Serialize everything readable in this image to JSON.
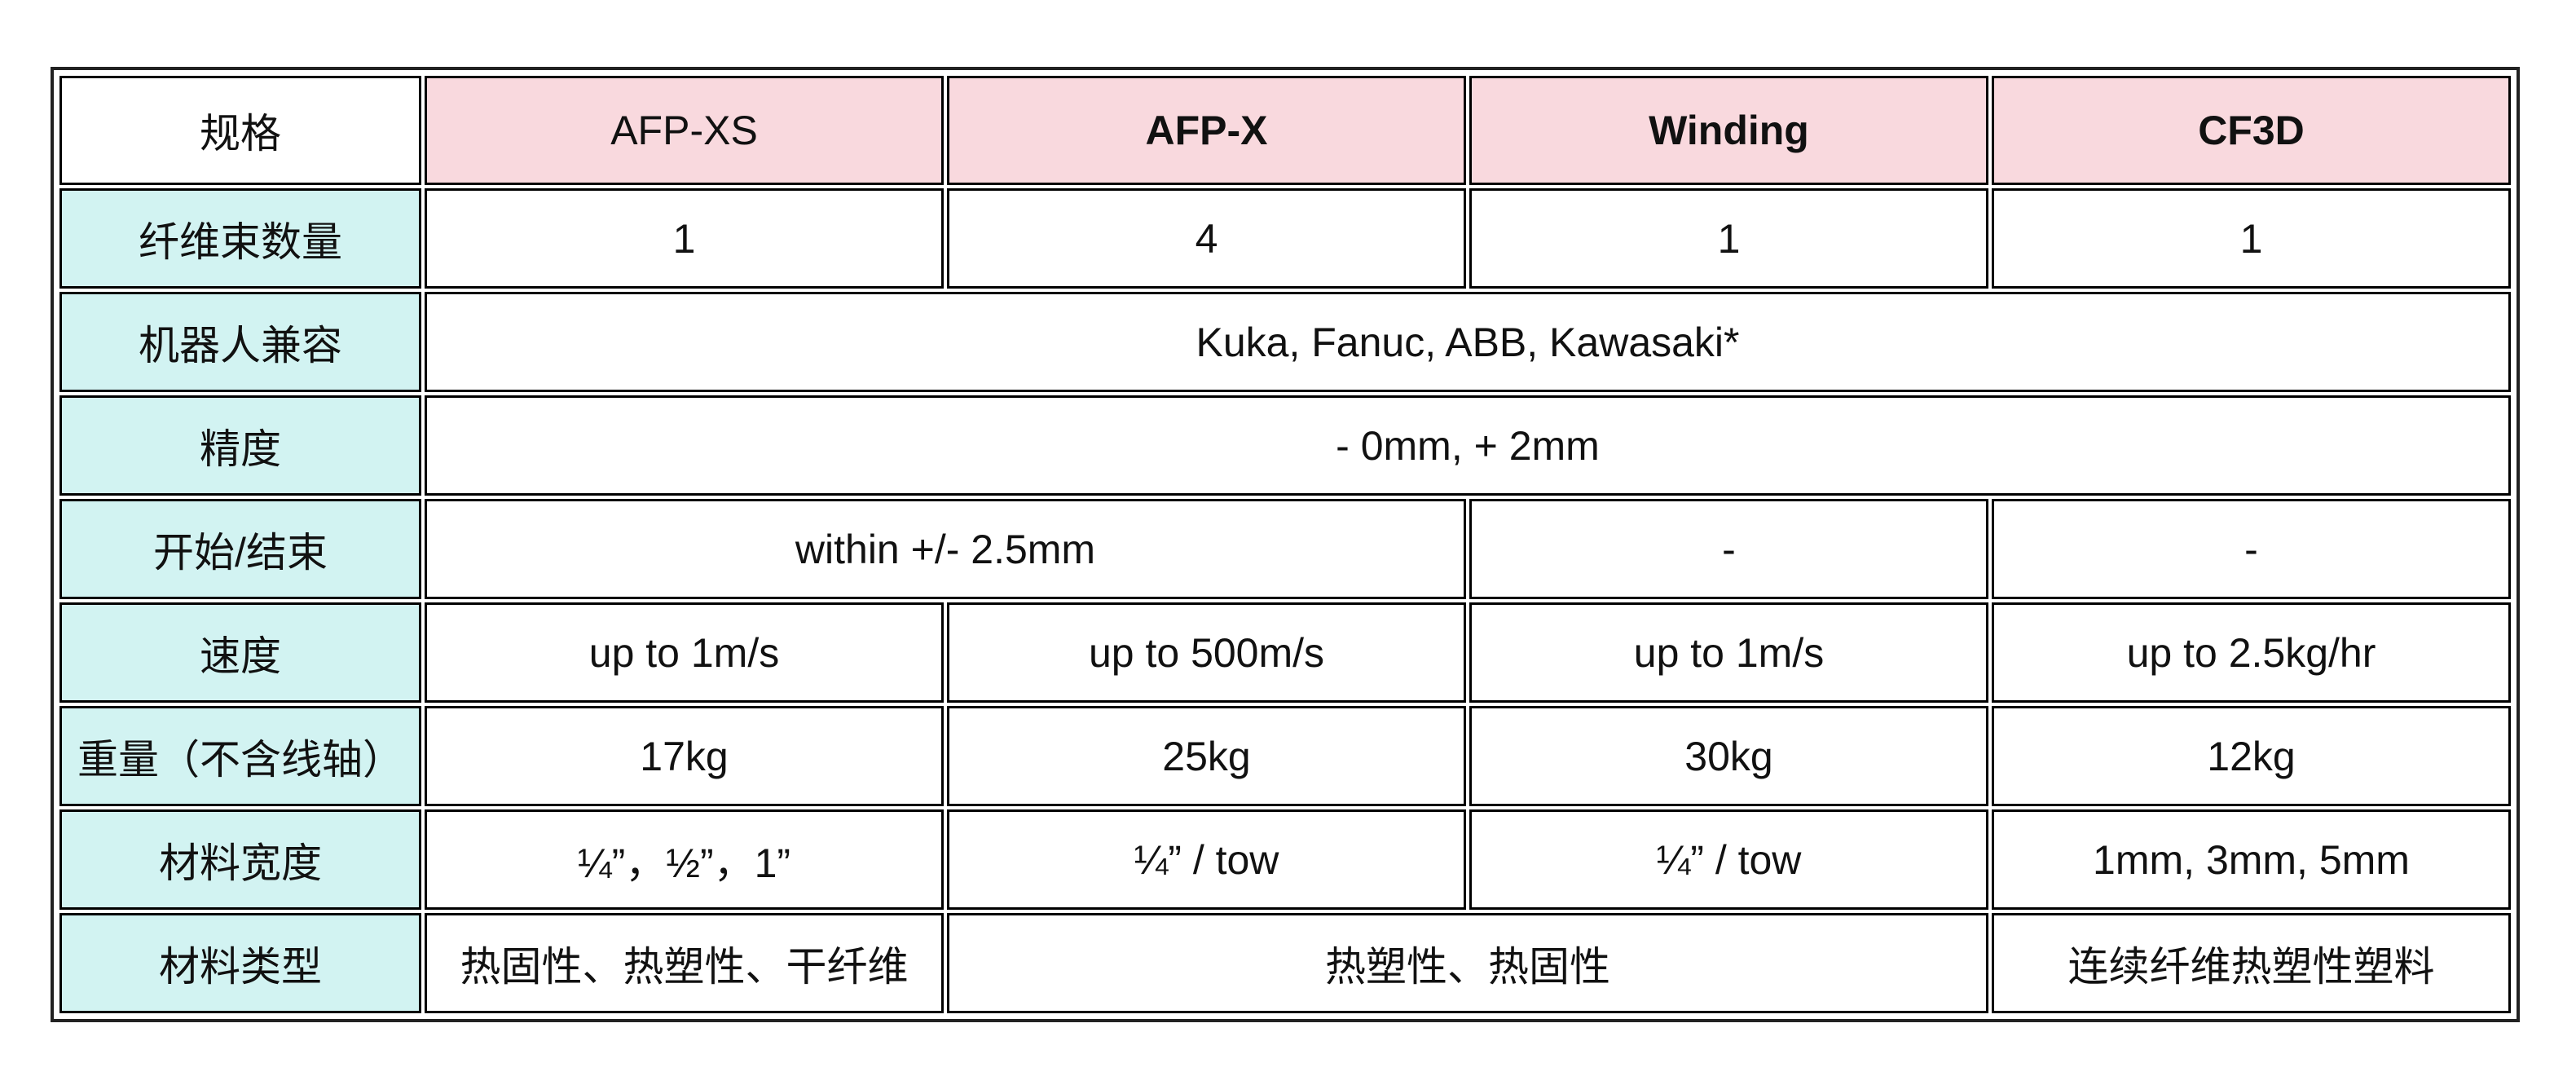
{
  "colors": {
    "header_bg": "#f9d9de",
    "label_bg": "#d2f3f2",
    "border": "#000000"
  },
  "table": {
    "corner": "规格",
    "columns": [
      "AFP-XS",
      "AFP-X",
      "Winding",
      "CF3D"
    ],
    "rows": [
      {
        "label": "纤维束数量",
        "cells": [
          "1",
          "4",
          "1",
          "1"
        ]
      },
      {
        "label": "机器人兼容",
        "cells": [
          "Kuka, Fanuc, ABB, Kawasaki*"
        ]
      },
      {
        "label": "精度",
        "cells": [
          "- 0mm, + 2mm"
        ]
      },
      {
        "label": "开始/结束",
        "cells": [
          "within +/- 2.5mm",
          "-",
          "-"
        ]
      },
      {
        "label": "速度",
        "cells": [
          "up to 1m/s",
          "up to 500m/s",
          "up to 1m/s",
          "up to 2.5kg/hr"
        ]
      },
      {
        "label": "重量（不含线轴）",
        "cells": [
          "17kg",
          "25kg",
          "30kg",
          "12kg"
        ]
      },
      {
        "label": "材料宽度",
        "cells": [
          "¼”，½”，1”",
          "¼”  / tow",
          "¼”  / tow",
          "1mm, 3mm, 5mm"
        ]
      },
      {
        "label": "材料类型",
        "cells": [
          "热固性、热塑性、干纤维",
          "热塑性、热固性",
          "连续纤维热塑性塑料"
        ]
      }
    ]
  }
}
